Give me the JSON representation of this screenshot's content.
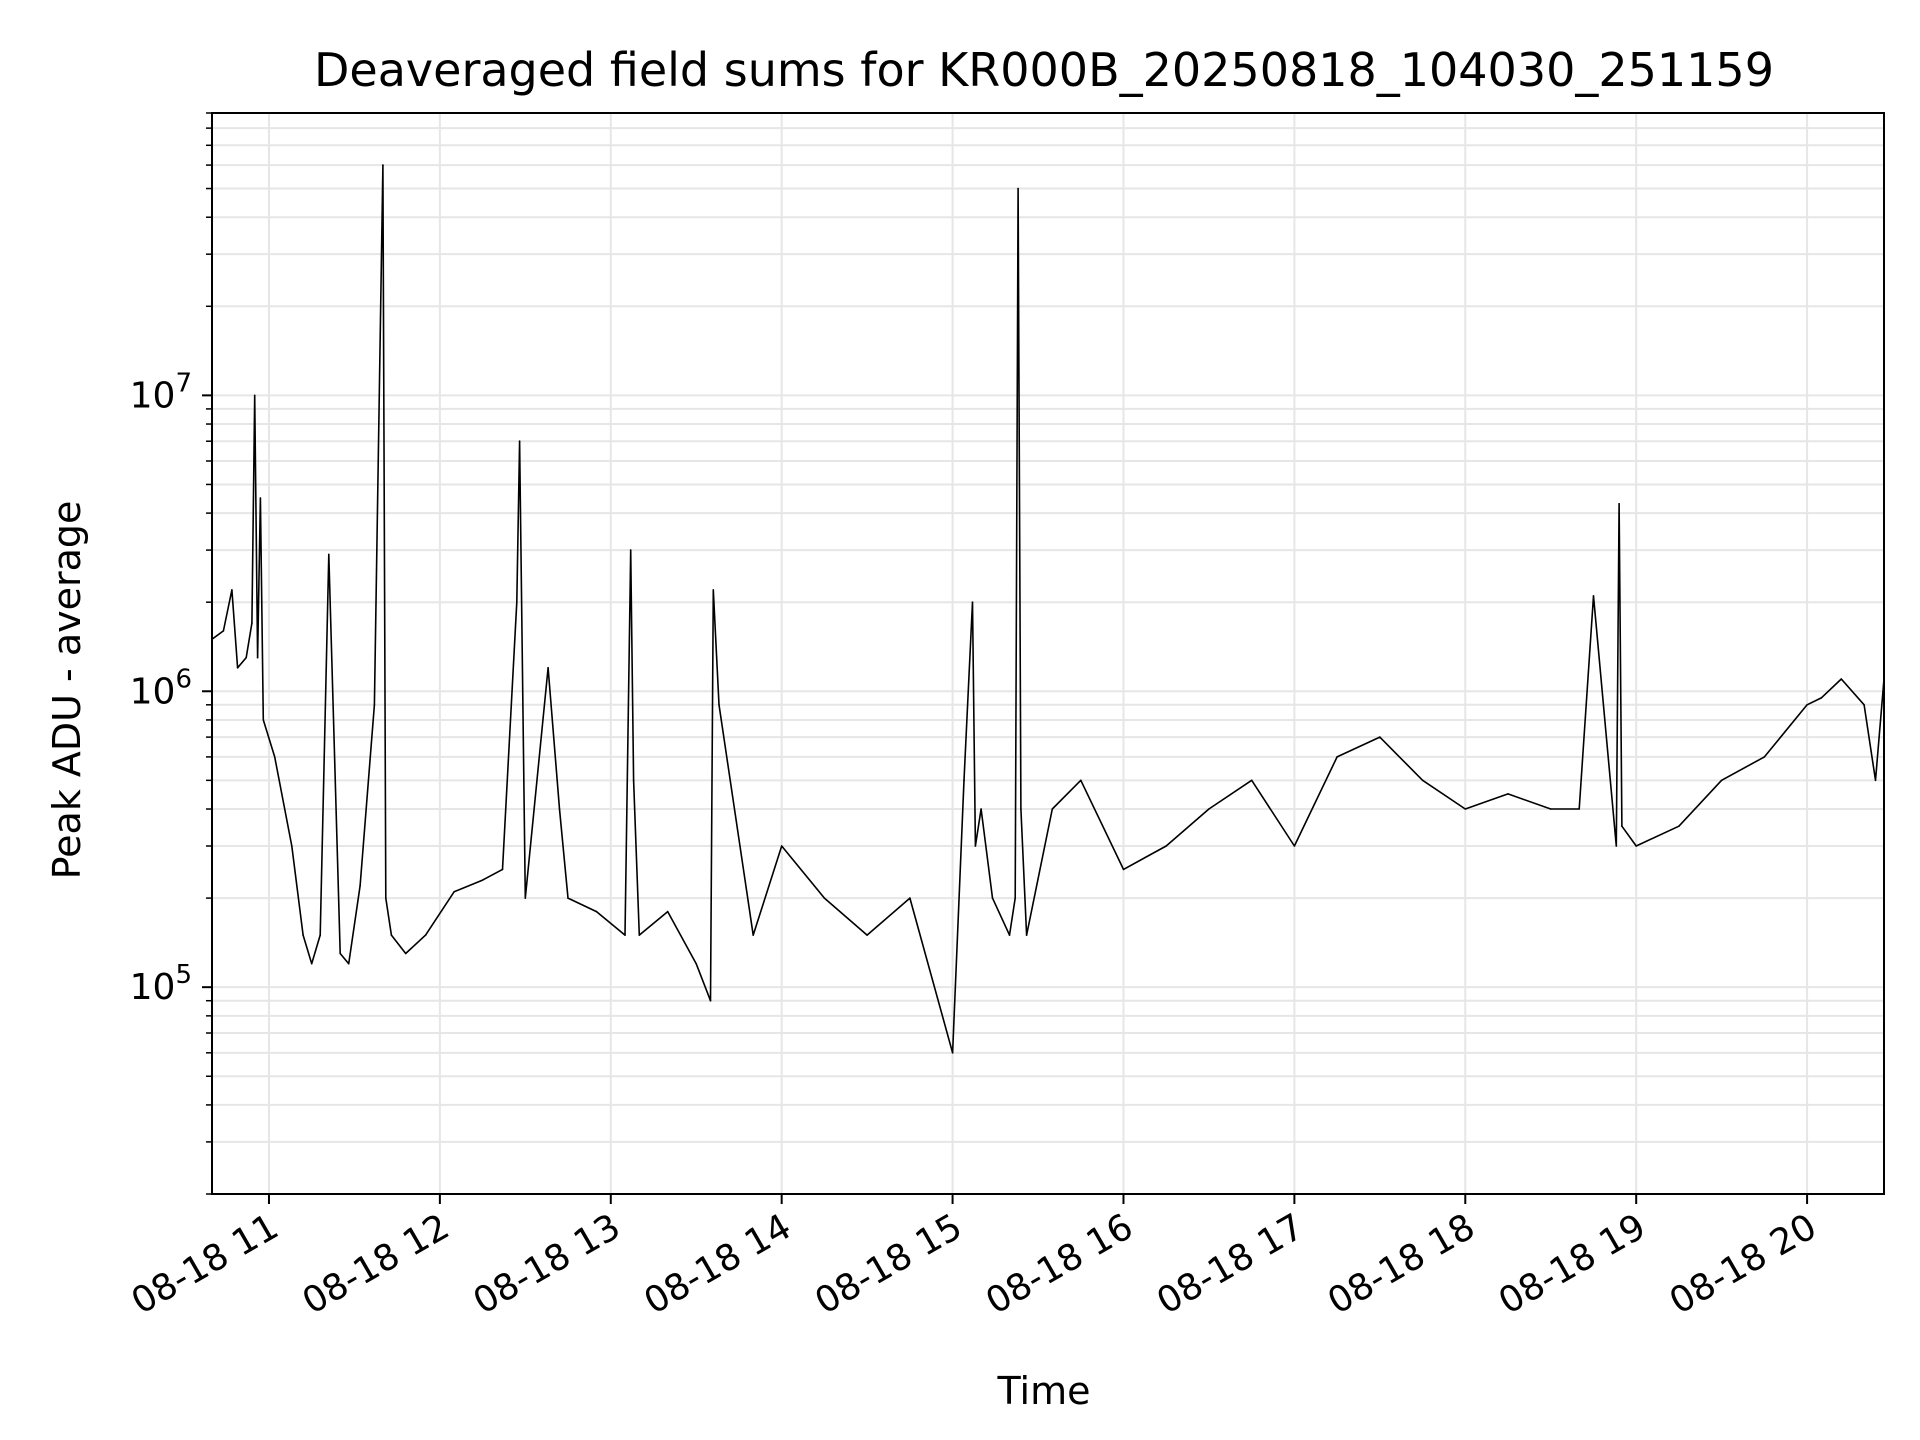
{
  "chart_data": {
    "type": "line",
    "title": "Deaveraged field sums for KR000B_20250818_104030_251159",
    "xlabel": "Time",
    "ylabel": "Peak ADU - average",
    "yscale": "log",
    "grid": true,
    "line_color": "#000000",
    "grid_color": "#e6e6e6",
    "xlim": [
      "2025-08-18 10:40",
      "2025-08-18 20:27"
    ],
    "ylim": [
      20000,
      90000000
    ],
    "x_ticks": [
      {
        "t": "2025-08-18 11:00",
        "label": "08-18 11"
      },
      {
        "t": "2025-08-18 12:00",
        "label": "08-18 12"
      },
      {
        "t": "2025-08-18 13:00",
        "label": "08-18 13"
      },
      {
        "t": "2025-08-18 14:00",
        "label": "08-18 14"
      },
      {
        "t": "2025-08-18 15:00",
        "label": "08-18 15"
      },
      {
        "t": "2025-08-18 16:00",
        "label": "08-18 16"
      },
      {
        "t": "2025-08-18 17:00",
        "label": "08-18 17"
      },
      {
        "t": "2025-08-18 18:00",
        "label": "08-18 18"
      },
      {
        "t": "2025-08-18 19:00",
        "label": "08-18 19"
      },
      {
        "t": "2025-08-18 20:00",
        "label": "08-18 20"
      }
    ],
    "y_ticks": [
      {
        "value": 100000,
        "base": "10",
        "exp": "5"
      },
      {
        "value": 1000000,
        "base": "10",
        "exp": "6"
      },
      {
        "value": 10000000,
        "base": "10",
        "exp": "7"
      }
    ],
    "series": [
      {
        "x": [
          "2025-08-18 10:40",
          "2025-08-18 10:44",
          "2025-08-18 10:47",
          "2025-08-18 10:49",
          "2025-08-18 10:52",
          "2025-08-18 10:54",
          "2025-08-18 10:55",
          "2025-08-18 10:56",
          "2025-08-18 10:57",
          "2025-08-18 10:58",
          "2025-08-18 11:02",
          "2025-08-18 11:08",
          "2025-08-18 11:12",
          "2025-08-18 11:15",
          "2025-08-18 11:18",
          "2025-08-18 11:21",
          "2025-08-18 11:25",
          "2025-08-18 11:28",
          "2025-08-18 11:32",
          "2025-08-18 11:37",
          "2025-08-18 11:40",
          "2025-08-18 11:41",
          "2025-08-18 11:43",
          "2025-08-18 11:48",
          "2025-08-18 11:55",
          "2025-08-18 12:05",
          "2025-08-18 12:15",
          "2025-08-18 12:22",
          "2025-08-18 12:27",
          "2025-08-18 12:28",
          "2025-08-18 12:30",
          "2025-08-18 12:38",
          "2025-08-18 12:42",
          "2025-08-18 12:45",
          "2025-08-18 12:55",
          "2025-08-18 13:05",
          "2025-08-18 13:07",
          "2025-08-18 13:08",
          "2025-08-18 13:10",
          "2025-08-18 13:20",
          "2025-08-18 13:30",
          "2025-08-18 13:35",
          "2025-08-18 13:36",
          "2025-08-18 13:38",
          "2025-08-18 13:50",
          "2025-08-18 14:00",
          "2025-08-18 14:15",
          "2025-08-18 14:30",
          "2025-08-18 14:45",
          "2025-08-18 15:00",
          "2025-08-18 15:04",
          "2025-08-18 15:07",
          "2025-08-18 15:08",
          "2025-08-18 15:10",
          "2025-08-18 15:14",
          "2025-08-18 15:20",
          "2025-08-18 15:22",
          "2025-08-18 15:23",
          "2025-08-18 15:24",
          "2025-08-18 15:26",
          "2025-08-18 15:35",
          "2025-08-18 15:45",
          "2025-08-18 16:00",
          "2025-08-18 16:15",
          "2025-08-18 16:30",
          "2025-08-18 16:45",
          "2025-08-18 17:00",
          "2025-08-18 17:15",
          "2025-08-18 17:30",
          "2025-08-18 17:45",
          "2025-08-18 18:00",
          "2025-08-18 18:15",
          "2025-08-18 18:30",
          "2025-08-18 18:40",
          "2025-08-18 18:45",
          "2025-08-18 18:53",
          "2025-08-18 18:54",
          "2025-08-18 18:55",
          "2025-08-18 19:00",
          "2025-08-18 19:15",
          "2025-08-18 19:30",
          "2025-08-18 19:45",
          "2025-08-18 20:00",
          "2025-08-18 20:05",
          "2025-08-18 20:12",
          "2025-08-18 20:20",
          "2025-08-18 20:24",
          "2025-08-18 20:27"
        ],
        "y": [
          1500000,
          1600000,
          2200000,
          1200000,
          1300000,
          1700000,
          10000000,
          1300000,
          4500000,
          800000,
          600000,
          300000,
          150000,
          120000,
          150000,
          2900000,
          130000,
          120000,
          220000,
          900000,
          60000000,
          200000,
          150000,
          130000,
          150000,
          210000,
          230000,
          250000,
          2000000,
          7000000,
          200000,
          1200000,
          400000,
          200000,
          180000,
          150000,
          3000000,
          500000,
          150000,
          180000,
          120000,
          90000,
          2200000,
          900000,
          150000,
          300000,
          200000,
          150000,
          200000,
          60000,
          500000,
          2000000,
          300000,
          400000,
          200000,
          150000,
          200000,
          50000000,
          400000,
          150000,
          400000,
          500000,
          250000,
          300000,
          400000,
          500000,
          300000,
          600000,
          700000,
          500000,
          400000,
          450000,
          400000,
          400000,
          2100000,
          300000,
          4300000,
          350000,
          300000,
          350000,
          500000,
          600000,
          900000,
          950000,
          1100000,
          900000,
          500000,
          1100000
        ]
      }
    ]
  }
}
